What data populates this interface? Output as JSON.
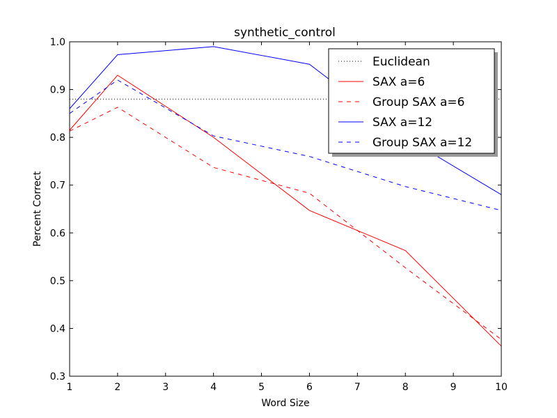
{
  "chart_data": {
    "type": "line",
    "title": "synthetic_control",
    "xlabel": "Word Size",
    "ylabel": "Percent Correct",
    "xlim": [
      1,
      10
    ],
    "ylim": [
      0.3,
      1.0
    ],
    "xticks": [
      "1",
      "2",
      "3",
      "4",
      "5",
      "6",
      "7",
      "8",
      "9",
      "10"
    ],
    "yticks": [
      "0.3",
      "0.4",
      "0.5",
      "0.6",
      "0.7",
      "0.8",
      "0.9",
      "1.0"
    ],
    "grid": false,
    "legend_position": "top-right",
    "series": [
      {
        "name": "Euclidean",
        "color": "#000000",
        "style": "dotted",
        "x": [
          1,
          10
        ],
        "y": [
          0.88,
          0.88
        ]
      },
      {
        "name": "SAX a=6",
        "color": "#ff0000",
        "style": "solid",
        "x": [
          1,
          2,
          4,
          6,
          8,
          10
        ],
        "y": [
          0.815,
          0.93,
          0.8,
          0.647,
          0.563,
          0.363
        ]
      },
      {
        "name": "Group SAX a=6",
        "color": "#ff0000",
        "style": "dashed",
        "x": [
          1,
          2,
          4,
          6,
          8,
          10
        ],
        "y": [
          0.813,
          0.863,
          0.737,
          0.683,
          0.527,
          0.377
        ]
      },
      {
        "name": "SAX a=12",
        "color": "#0000ff",
        "style": "solid",
        "x": [
          1,
          2,
          4,
          6,
          8,
          10
        ],
        "y": [
          0.86,
          0.973,
          0.99,
          0.953,
          0.8,
          0.68
        ]
      },
      {
        "name": "Group SAX a=12",
        "color": "#0000ff",
        "style": "dashed",
        "x": [
          1,
          2,
          4,
          6,
          8,
          10
        ],
        "y": [
          0.85,
          0.92,
          0.803,
          0.76,
          0.697,
          0.647
        ]
      }
    ]
  }
}
